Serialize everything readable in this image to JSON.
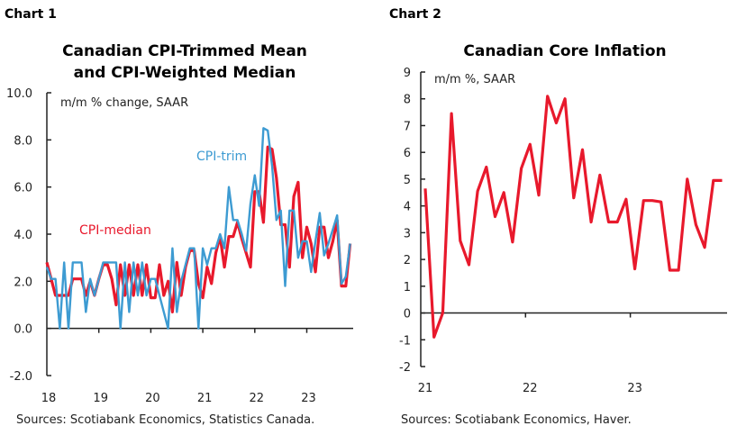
{
  "colors": {
    "median": "#e8192c",
    "trim": "#3d9bd2",
    "core": "#e8192c",
    "axis": "#222222"
  },
  "chart_data": [
    {
      "type": "line",
      "label": "Chart 1",
      "title_lines": [
        "Canadian CPI-Trimmed Mean",
        "and CPI-Weighted Median"
      ],
      "unit_note": "m/m % change, SAAR",
      "source": "Sources: Scotiabank Economics, Statistics Canada.",
      "start": "2018-01",
      "frequency": "monthly",
      "ylim": [
        -2,
        10
      ],
      "yticks": [
        "-2.0",
        "0.0",
        "2.0",
        "4.0",
        "6.0",
        "8.0",
        "10.0"
      ],
      "ytick_values": [
        -2,
        0,
        2,
        4,
        6,
        8,
        10
      ],
      "xticks": [
        "18",
        "19",
        "20",
        "21",
        "22",
        "23"
      ],
      "series": [
        {
          "name": "CPI-median",
          "color": "#e8192c",
          "values": [
            2.8,
            2.1,
            1.4,
            1.4,
            1.4,
            1.4,
            2.1,
            2.1,
            2.1,
            1.4,
            2.0,
            1.4,
            2.1,
            2.7,
            2.7,
            2.1,
            1.0,
            2.7,
            1.4,
            2.7,
            1.4,
            2.7,
            1.4,
            2.7,
            1.3,
            1.3,
            2.7,
            1.4,
            2.0,
            0.7,
            2.8,
            1.4,
            2.6,
            3.3,
            3.3,
            1.9,
            1.3,
            2.6,
            1.9,
            3.2,
            3.9,
            2.6,
            3.9,
            3.9,
            4.5,
            3.8,
            3.2,
            2.6,
            5.8,
            5.8,
            4.5,
            7.7,
            7.6,
            6.4,
            4.4,
            4.4,
            2.6,
            5.6,
            6.2,
            3.0,
            4.3,
            3.6,
            2.4,
            4.3,
            4.3,
            3.0,
            3.7,
            4.6,
            1.8,
            1.8,
            3.6
          ]
        },
        {
          "name": "CPI-trim",
          "color": "#3d9bd2",
          "values": [
            2.6,
            2.1,
            2.1,
            0,
            2.8,
            0,
            2.8,
            2.8,
            2.8,
            0.7,
            2.1,
            1.4,
            2.1,
            2.8,
            2.8,
            2.8,
            2.8,
            0,
            2.8,
            0.7,
            2.8,
            1.4,
            2.8,
            1.4,
            2.1,
            2.1,
            1.4,
            0.7,
            0,
            3.4,
            0.7,
            2.0,
            2.7,
            3.4,
            3.4,
            0,
            3.4,
            2.7,
            3.4,
            3.4,
            4.0,
            3.4,
            6.0,
            4.6,
            4.6,
            4.0,
            3.3,
            5.3,
            6.5,
            5.2,
            8.5,
            8.4,
            6.9,
            4.6,
            5.0,
            1.8,
            5.0,
            5.0,
            3.0,
            3.7,
            3.7,
            2.4,
            3.7,
            4.9,
            3.1,
            3.6,
            4.2,
            4.8,
            1.9,
            2.2,
            3.6
          ]
        }
      ]
    },
    {
      "type": "line",
      "label": "Chart 2",
      "title_lines": [
        "Canadian Core Inflation"
      ],
      "unit_note": "m/m %, SAAR",
      "source": "Sources: Scotiabank Economics, Haver.",
      "start": "2021-01",
      "frequency": "monthly",
      "ylim": [
        -2,
        9
      ],
      "yticks": [
        "-2",
        "-1",
        "0",
        "1",
        "2",
        "3",
        "4",
        "5",
        "6",
        "7",
        "8",
        "9"
      ],
      "ytick_values": [
        -2,
        -1,
        0,
        1,
        2,
        3,
        4,
        5,
        6,
        7,
        8,
        9
      ],
      "xticks": [
        "21",
        "22",
        "23"
      ],
      "series": [
        {
          "color": "#e8192c",
          "values": [
            4.65,
            -0.9,
            0.0,
            7.45,
            2.7,
            1.8,
            4.55,
            5.45,
            3.6,
            4.5,
            2.65,
            5.4,
            6.3,
            4.4,
            8.1,
            7.1,
            8.0,
            4.3,
            6.1,
            3.4,
            5.15,
            3.4,
            3.4,
            4.25,
            1.65,
            4.2,
            4.2,
            4.15,
            1.6,
            1.6,
            5.0,
            3.3,
            2.45,
            4.95,
            4.95
          ]
        }
      ]
    }
  ]
}
